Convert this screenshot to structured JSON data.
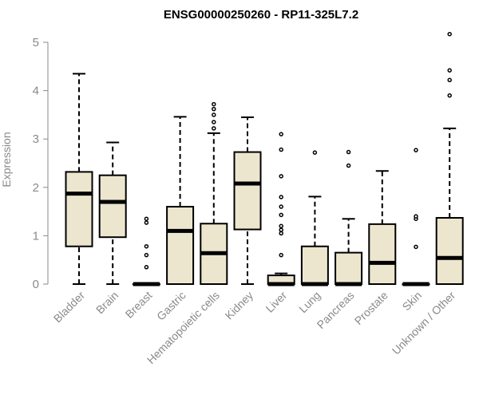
{
  "chart_data": {
    "type": "boxplot",
    "title": "ENSG00000250260 - RP11-325L7.2",
    "xlabel": "",
    "ylabel": "Expression",
    "ylim": [
      0,
      5.2
    ],
    "yticks": [
      0,
      1,
      2,
      3,
      4,
      5
    ],
    "grid": false,
    "legend": "none",
    "categories": [
      "Bladder",
      "Brain",
      "Breast",
      "Gastric",
      "Hematopoietic cells",
      "Kidney",
      "Liver",
      "Lung",
      "Pancreas",
      "Prostate",
      "Skin",
      "Unknown / Other"
    ],
    "boxes": [
      {
        "min": 0,
        "q1": 0.78,
        "median": 1.87,
        "q3": 2.32,
        "max": 4.35,
        "outliers": []
      },
      {
        "min": 0,
        "q1": 0.97,
        "median": 1.7,
        "q3": 2.25,
        "max": 2.93,
        "outliers": []
      },
      {
        "min": 0,
        "q1": 0,
        "median": 0,
        "q3": 0,
        "max": 0,
        "outliers": [
          0.35,
          0.6,
          0.78,
          1.27,
          1.35
        ]
      },
      {
        "min": 0,
        "q1": 0,
        "median": 1.1,
        "q3": 1.6,
        "max": 3.46,
        "outliers": []
      },
      {
        "min": 0,
        "q1": 0,
        "median": 0.64,
        "q3": 1.25,
        "max": 3.12,
        "outliers": [
          3.22,
          3.35,
          3.5,
          3.62,
          3.72
        ]
      },
      {
        "min": 0,
        "q1": 1.13,
        "median": 2.08,
        "q3": 2.73,
        "max": 3.45,
        "outliers": []
      },
      {
        "min": 0,
        "q1": 0,
        "median": 0,
        "q3": 0.18,
        "max": 0.22,
        "outliers": [
          0.6,
          1.05,
          1.12,
          1.2,
          1.43,
          1.6,
          1.8,
          2.23,
          2.78,
          3.1
        ]
      },
      {
        "min": 0,
        "q1": 0,
        "median": 0,
        "q3": 0.78,
        "max": 1.81,
        "outliers": [
          2.72
        ]
      },
      {
        "min": 0,
        "q1": 0,
        "median": 0,
        "q3": 0.65,
        "max": 1.35,
        "outliers": [
          2.45,
          2.73
        ]
      },
      {
        "min": 0,
        "q1": 0,
        "median": 0.44,
        "q3": 1.24,
        "max": 2.34,
        "outliers": []
      },
      {
        "min": 0,
        "q1": 0,
        "median": 0,
        "q3": 0,
        "max": 0,
        "outliers": [
          0.77,
          1.35,
          1.4,
          2.77
        ]
      },
      {
        "min": 0,
        "q1": 0,
        "median": 0.54,
        "q3": 1.37,
        "max": 3.22,
        "outliers": [
          3.9,
          4.22,
          4.42,
          5.17
        ]
      }
    ],
    "box_fill": "#ede6cf",
    "box_stroke": "#000000",
    "axis_color": "#8a8a8a"
  }
}
